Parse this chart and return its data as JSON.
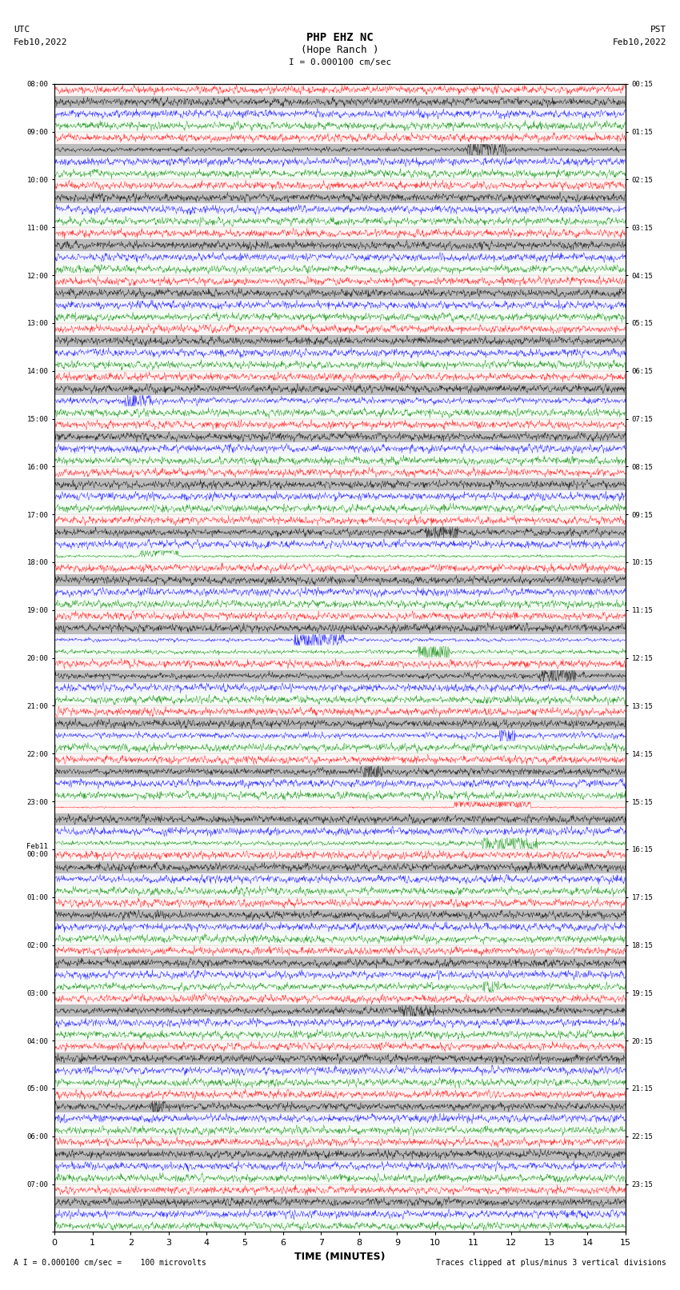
{
  "title_line1": "PHP EHZ NC",
  "title_line2": "(Hope Ranch )",
  "scale_text": "I = 0.000100 cm/sec",
  "left_header1": "UTC",
  "left_header2": "Feb10,2022",
  "right_header1": "PST",
  "right_header2": "Feb10,2022",
  "bottom_label": "TIME (MINUTES)",
  "bottom_note_left": "A I = 0.000100 cm/sec =    100 microvolts",
  "bottom_note_right": "Traces clipped at plus/minus 3 vertical divisions",
  "utc_labels": [
    "08:00",
    "09:00",
    "10:00",
    "11:00",
    "12:00",
    "13:00",
    "14:00",
    "15:00",
    "16:00",
    "17:00",
    "18:00",
    "19:00",
    "20:00",
    "21:00",
    "22:00",
    "23:00",
    "Feb11\n00:00",
    "01:00",
    "02:00",
    "03:00",
    "04:00",
    "05:00",
    "06:00",
    "07:00"
  ],
  "pst_labels": [
    "00:15",
    "01:15",
    "02:15",
    "03:15",
    "04:15",
    "05:15",
    "06:15",
    "07:15",
    "08:15",
    "09:15",
    "10:15",
    "11:15",
    "12:15",
    "13:15",
    "14:15",
    "15:15",
    "16:15",
    "17:15",
    "18:15",
    "19:15",
    "20:15",
    "21:15",
    "22:15",
    "23:15"
  ],
  "n_rows": 24,
  "n_traces_per_row": 4,
  "trace_colors": [
    "red",
    "black",
    "blue",
    "green"
  ],
  "bg_color": "white",
  "minutes_ticks": [
    0,
    1,
    2,
    3,
    4,
    5,
    6,
    7,
    8,
    9,
    10,
    11,
    12,
    13,
    14,
    15
  ],
  "figsize": [
    8.5,
    16.13
  ],
  "dpi": 100
}
